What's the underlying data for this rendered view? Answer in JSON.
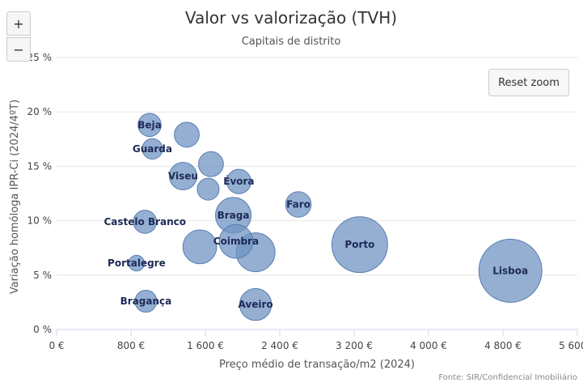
{
  "controls": {
    "zoom_in_label": "+",
    "zoom_out_label": "−",
    "reset_zoom_label": "Reset zoom"
  },
  "chart_data": {
    "type": "bubble",
    "title": "Valor vs valorização (TVH)",
    "subtitle": "Capitais de distrito",
    "xlabel": "Preço médio de transação/m2 (2024)",
    "ylabel": "Variação homóloga IPR-Ci (2024/4ºT)",
    "credit": "Fonte: SIR/Confidencial Imobiliário",
    "xlim": [
      0,
      5600
    ],
    "ylim": [
      0,
      25
    ],
    "x_ticks": [
      0,
      800,
      1600,
      2400,
      3200,
      4000,
      4800,
      5600
    ],
    "x_tick_labels": [
      "0 €",
      "800 €",
      "1 600 €",
      "2 400 €",
      "3 200 €",
      "4 000 €",
      "4 800 €",
      "5 600 €"
    ],
    "y_ticks": [
      0,
      5,
      10,
      15,
      20,
      25
    ],
    "y_tick_labels": [
      "0 %",
      "5 %",
      "10 %",
      "15 %",
      "20 %",
      "25 %"
    ],
    "grid": "horizontal",
    "color": "#7094c3",
    "points": [
      {
        "label": "Beja",
        "x": 1000,
        "y": 18.8,
        "size": 1.2
      },
      {
        "label": "",
        "x": 1400,
        "y": 17.9,
        "size": 1.5
      },
      {
        "label": "Guarda",
        "x": 1030,
        "y": 16.6,
        "size": 0.8
      },
      {
        "label": "",
        "x": 1660,
        "y": 15.2,
        "size": 1.5
      },
      {
        "label": "Viseu",
        "x": 1360,
        "y": 14.1,
        "size": 2.0
      },
      {
        "label": "Évora",
        "x": 1960,
        "y": 13.6,
        "size": 1.4
      },
      {
        "label": "",
        "x": 1630,
        "y": 12.9,
        "size": 1.0
      },
      {
        "label": "Faro",
        "x": 2600,
        "y": 11.5,
        "size": 1.6
      },
      {
        "label": "Castelo Branco",
        "x": 950,
        "y": 9.9,
        "size": 1.2
      },
      {
        "label": "Braga",
        "x": 1900,
        "y": 10.5,
        "size": 4.0
      },
      {
        "label": "Coimbra",
        "x": 1930,
        "y": 8.1,
        "size": 3.5
      },
      {
        "label": "",
        "x": 1540,
        "y": 7.6,
        "size": 3.5
      },
      {
        "label": "",
        "x": 2140,
        "y": 7.1,
        "size": 5.0
      },
      {
        "label": "Porto",
        "x": 3260,
        "y": 7.8,
        "size": 12.0
      },
      {
        "label": "Lisboa",
        "x": 4880,
        "y": 5.4,
        "size": 16.0
      },
      {
        "label": "Portalegre",
        "x": 860,
        "y": 6.1,
        "size": 0.3
      },
      {
        "label": "Bragança",
        "x": 960,
        "y": 2.6,
        "size": 1.0
      },
      {
        "label": "Aveiro",
        "x": 2140,
        "y": 2.3,
        "size": 3.0
      }
    ]
  }
}
